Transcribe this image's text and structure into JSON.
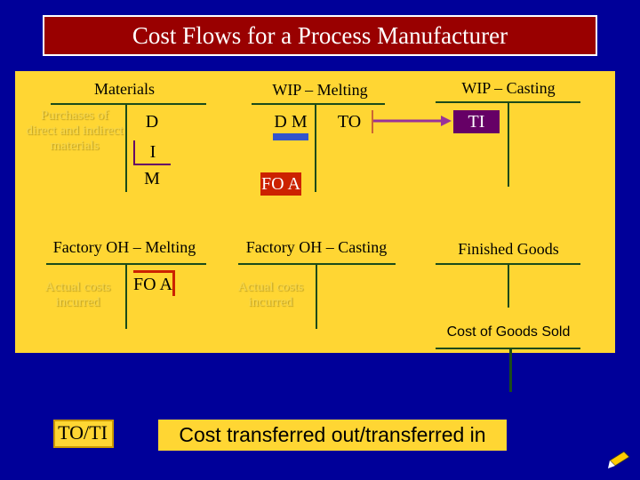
{
  "title": "Cost Flows for a Process Manufacturer",
  "accounts": {
    "materials": {
      "title": "Materials",
      "debit": "Purchases of direct and indirect materials",
      "credit": [
        "D",
        "I",
        "M"
      ]
    },
    "wip_melting": {
      "title": "WIP – Melting",
      "debit": [
        "D M",
        "FO A"
      ],
      "credit": "TO"
    },
    "wip_casting": {
      "title": "WIP – Casting",
      "debit": "TI"
    },
    "foh_melting": {
      "title": "Factory OH – Melting",
      "debit": "Actual costs incurred",
      "credit": "FO A"
    },
    "foh_casting": {
      "title": "Factory OH – Casting",
      "debit": "Actual costs incurred"
    },
    "finished_goods": {
      "title": "Finished Goods"
    },
    "cogs": {
      "title": "Cost of Goods Sold"
    }
  },
  "legend": {
    "abbreviation": "TO/TI",
    "meaning": "Cost transferred out/transferred in"
  }
}
